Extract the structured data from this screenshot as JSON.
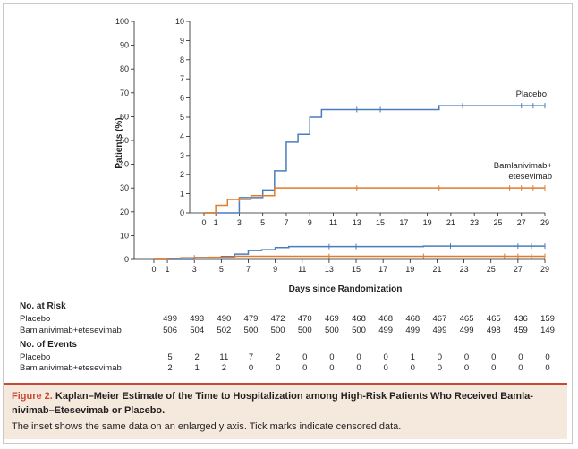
{
  "chart_data": {
    "type": "line",
    "chart_style": "step",
    "main": {
      "ylabel": "Patients (%)",
      "xlabel": "Days since Randomization",
      "xlim": [
        0,
        29
      ],
      "ylim": [
        0,
        100
      ],
      "xticks": [
        0,
        1,
        3,
        5,
        7,
        9,
        11,
        13,
        15,
        17,
        19,
        21,
        23,
        25,
        27,
        29
      ],
      "yticks": [
        0,
        10,
        20,
        30,
        40,
        50,
        60,
        70,
        80,
        90,
        100
      ]
    },
    "inset": {
      "ylim": [
        0,
        10
      ],
      "xlim": [
        0,
        29
      ],
      "xticks": [
        0,
        1,
        3,
        5,
        7,
        9,
        11,
        13,
        15,
        17,
        19,
        21,
        23,
        25,
        27,
        29
      ],
      "yticks": [
        0,
        1,
        2,
        3,
        4,
        5,
        6,
        7,
        8,
        9,
        10
      ]
    },
    "series": [
      {
        "name": "Placebo",
        "color": "#4a7dbd",
        "steps": [
          [
            0,
            0
          ],
          [
            3,
            0.8
          ],
          [
            5,
            1.2
          ],
          [
            6,
            2.2
          ],
          [
            7,
            3.7
          ],
          [
            8,
            4.1
          ],
          [
            9,
            5.0
          ],
          [
            10,
            5.4
          ],
          [
            20,
            5.6
          ]
        ],
        "end": 29,
        "censored": [
          13,
          15,
          22,
          27,
          28,
          29
        ]
      },
      {
        "name": "Bamlanivimab+\netesevimab",
        "color": "#e07c2b",
        "steps": [
          [
            0,
            0
          ],
          [
            1,
            0.4
          ],
          [
            2,
            0.7
          ],
          [
            4,
            0.9
          ],
          [
            6,
            1.3
          ]
        ],
        "end": 29,
        "censored": [
          3,
          13,
          20,
          26,
          27,
          28,
          29
        ]
      }
    ]
  },
  "risk_table": {
    "at_risk_heading": "No. at Risk",
    "events_heading": "No. of Events",
    "rows_at_risk": [
      {
        "label": "Placebo",
        "values": [
          "499",
          "493",
          "490",
          "479",
          "472",
          "470",
          "469",
          "468",
          "468",
          "468",
          "467",
          "465",
          "465",
          "436",
          "159"
        ]
      },
      {
        "label": "Bamlanivimab+etesevimab",
        "values": [
          "506",
          "504",
          "502",
          "500",
          "500",
          "500",
          "500",
          "500",
          "499",
          "499",
          "499",
          "499",
          "498",
          "459",
          "149"
        ]
      }
    ],
    "rows_events": [
      {
        "label": "Placebo",
        "values": [
          "5",
          "2",
          "11",
          "7",
          "2",
          "0",
          "0",
          "0",
          "0",
          "1",
          "0",
          "0",
          "0",
          "0",
          "0"
        ]
      },
      {
        "label": "Bamlanivimab+etesevimab",
        "values": [
          "2",
          "1",
          "2",
          "0",
          "0",
          "0",
          "0",
          "0",
          "0",
          "0",
          "0",
          "0",
          "0",
          "0",
          "0"
        ]
      }
    ]
  },
  "caption": {
    "figure_label": "Figure 2.",
    "title": "Kaplan–Meier Estimate of the Time to Hospitalization among High-Risk Patients Who Received Bamla-nivimab–Etesevimab or Placebo.",
    "text": "The inset shows the same data on an enlarged y axis. Tick marks indicate censored data."
  }
}
